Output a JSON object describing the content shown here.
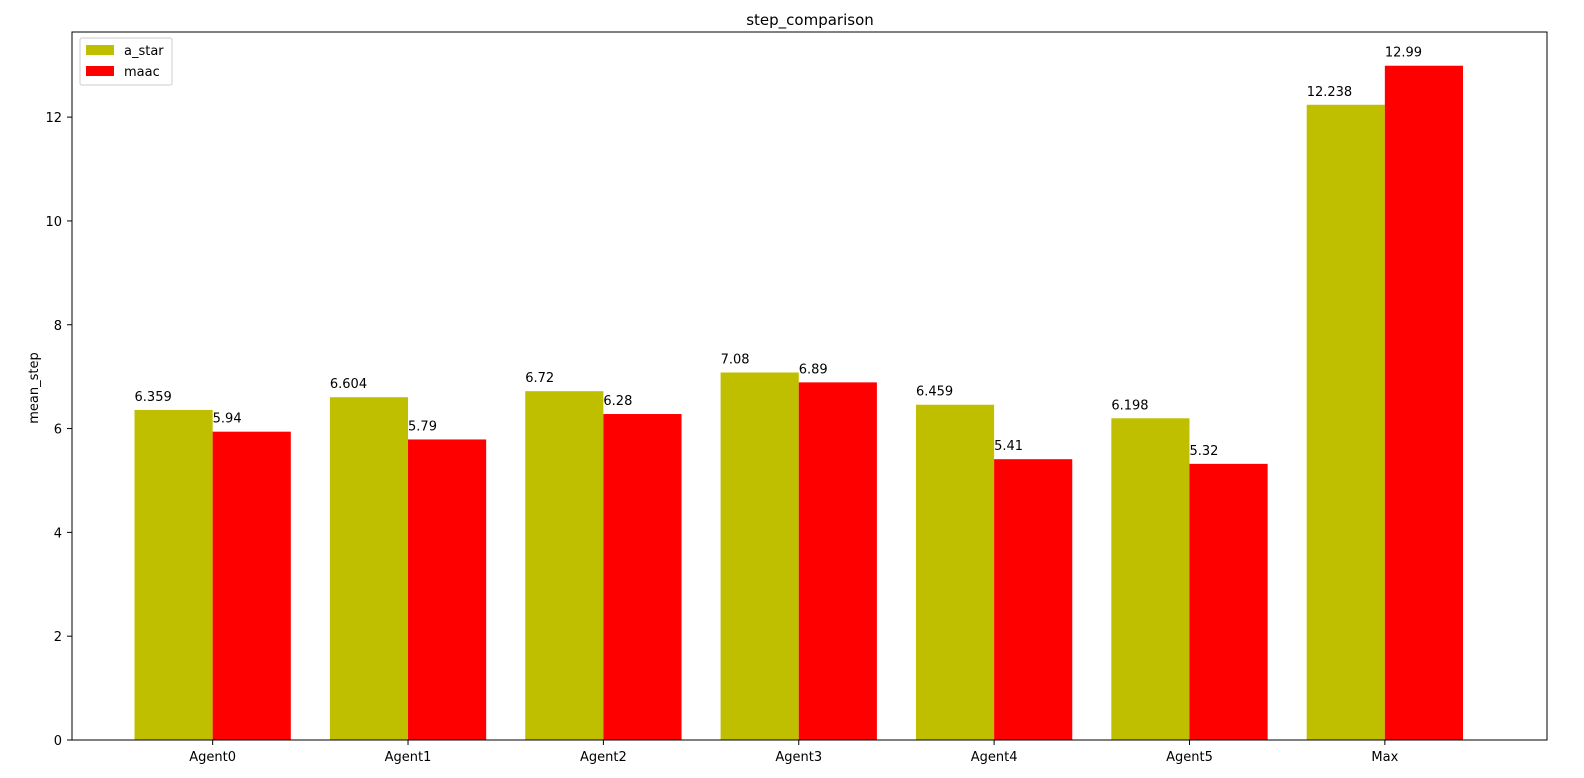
{
  "chart_data": {
    "type": "bar",
    "title": "step_comparison",
    "xlabel": "",
    "ylabel": "mean_step",
    "categories": [
      "Agent0",
      "Agent1",
      "Agent2",
      "Agent3",
      "Agent4",
      "Agent5",
      "Max"
    ],
    "series": [
      {
        "name": "a_star",
        "color": "#bfbf00",
        "values": [
          6.359,
          6.604,
          6.72,
          7.08,
          6.459,
          6.198,
          12.238
        ],
        "labels": [
          "6.359",
          "6.604",
          "6.72",
          "7.08",
          "6.459",
          "6.198",
          "12.238"
        ]
      },
      {
        "name": "maac",
        "color": "#ff0000",
        "values": [
          5.94,
          5.79,
          6.28,
          6.89,
          5.41,
          5.32,
          12.99
        ],
        "labels": [
          "5.94",
          "5.79",
          "6.28",
          "6.89",
          "5.41",
          "5.32",
          "12.99"
        ]
      }
    ],
    "ylim": [
      0,
      13.64
    ],
    "yticks": [
      0,
      2,
      4,
      6,
      8,
      10,
      12
    ],
    "grid": false,
    "legend": "top-left"
  }
}
